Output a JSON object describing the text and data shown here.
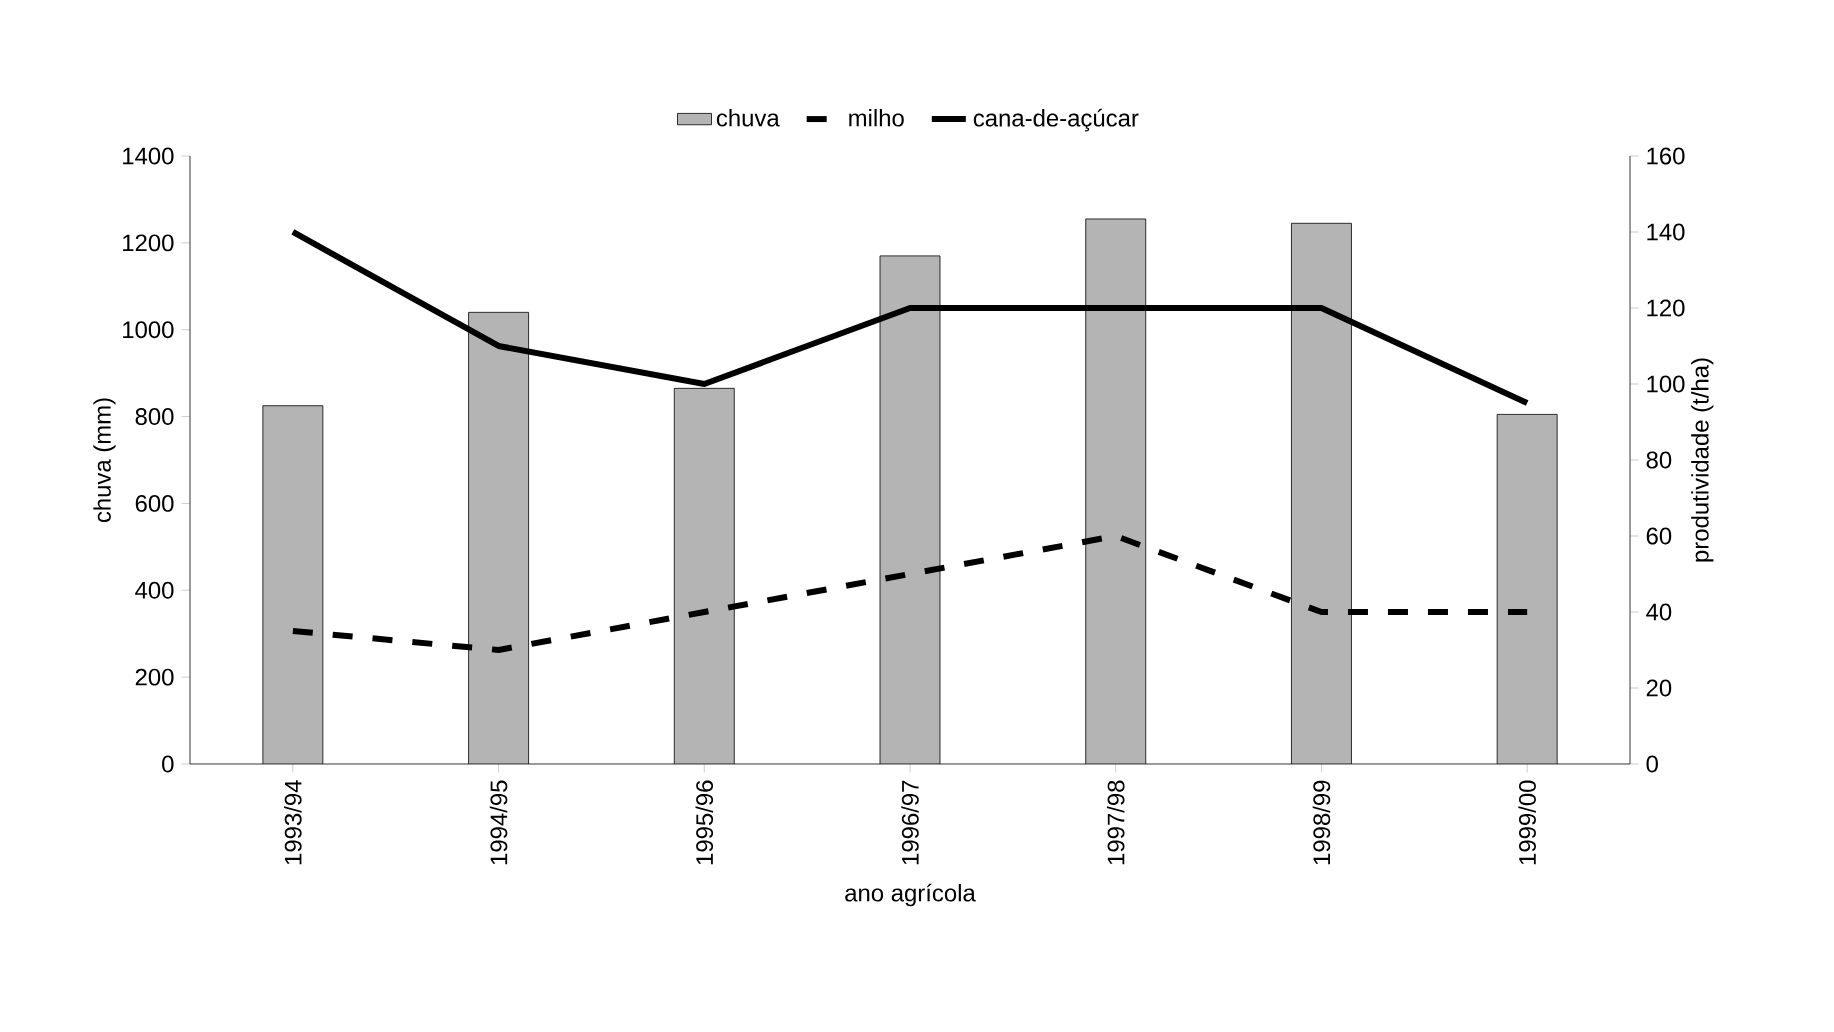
{
  "chart_data": {
    "type": "bar",
    "xlabel": "ano agrícola",
    "ylabel": "chuva (mm)",
    "y2label": "produtividade (t/ha)",
    "categories": [
      "1993/94",
      "1994/95",
      "1995/96",
      "1996/97",
      "1997/98",
      "1998/99",
      "1999/00"
    ],
    "series": [
      {
        "name": "chuva",
        "color": "#b4b4b4",
        "values": [
          825,
          1040,
          865,
          1170,
          1255,
          1245,
          805
        ]
      },
      {
        "name": "milho",
        "type": "line",
        "axis": "y2",
        "line_style": "dashed",
        "color": "#000000",
        "values": [
          35,
          30,
          40,
          50,
          60,
          40,
          40
        ]
      },
      {
        "name": "cana-de-açúcar",
        "type": "line",
        "axis": "y2",
        "line_style": "solid",
        "color": "#000000",
        "values": [
          140,
          110,
          100,
          120,
          120,
          120,
          95
        ]
      }
    ],
    "ylim": [
      0,
      1400
    ],
    "yticks": [
      0,
      200,
      400,
      600,
      800,
      1000,
      1200,
      1400
    ],
    "y2lim": [
      0,
      160
    ],
    "y2ticks": [
      0,
      20,
      40,
      60,
      80,
      100,
      120,
      140,
      160
    ],
    "grid": false,
    "legend": "top",
    "marker": "none"
  }
}
